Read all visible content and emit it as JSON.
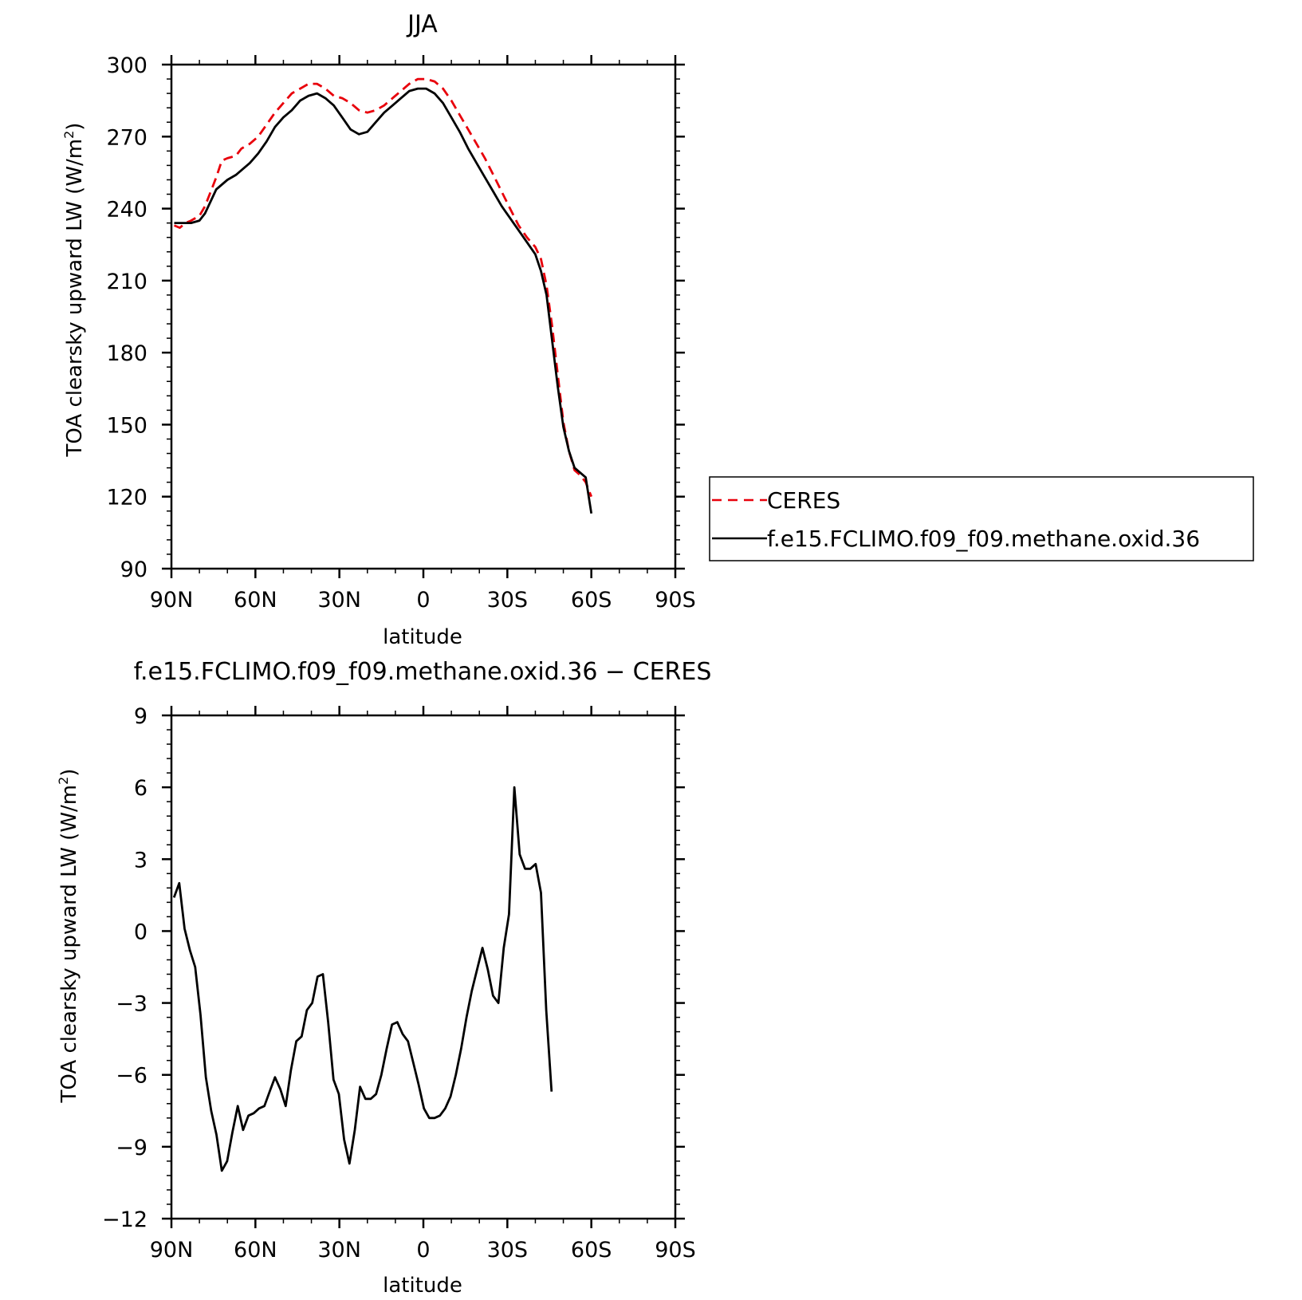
{
  "chart_data": [
    {
      "type": "line",
      "title": "JJA",
      "xlabel": "latitude",
      "ylabel": "TOA clearsky upward LW (W/m²)",
      "ylabel_main": "TOA clearsky upward LW (W/m",
      "ylabel_sup": "2",
      "ylabel_close": ")",
      "xlim": [
        90,
        -90
      ],
      "ylim": [
        90,
        300
      ],
      "x_ticks": [
        {
          "value": 90,
          "label": "90N"
        },
        {
          "value": 60,
          "label": "60N"
        },
        {
          "value": 30,
          "label": "30N"
        },
        {
          "value": 0,
          "label": "0"
        },
        {
          "value": -30,
          "label": "30S"
        },
        {
          "value": -60,
          "label": "60S"
        },
        {
          "value": -90,
          "label": "90S"
        }
      ],
      "y_ticks": [
        90,
        120,
        150,
        180,
        210,
        240,
        270,
        300
      ],
      "legend_position": "right",
      "series": [
        {
          "name": "CERES",
          "color": "#e8000b",
          "style": "dashed",
          "points": [
            [
              89,
              233
            ],
            [
              87,
              232
            ],
            [
              85,
              234
            ],
            [
              83,
              235
            ],
            [
              80,
              237
            ],
            [
              78,
              241
            ],
            [
              76,
              247
            ],
            [
              74,
              253
            ],
            [
              72,
              260
            ],
            [
              70,
              261
            ],
            [
              67,
              262
            ],
            [
              65,
              265
            ],
            [
              62,
              267
            ],
            [
              59,
              270
            ],
            [
              56,
              275
            ],
            [
              53,
              280
            ],
            [
              50,
              284
            ],
            [
              47,
              288
            ],
            [
              44,
              290
            ],
            [
              41,
              292
            ],
            [
              38,
              292
            ],
            [
              35,
              290
            ],
            [
              32,
              287
            ],
            [
              29,
              286
            ],
            [
              26,
              284
            ],
            [
              23,
              281
            ],
            [
              20,
              280
            ],
            [
              17,
              281
            ],
            [
              14,
              283
            ],
            [
              11,
              286
            ],
            [
              8,
              289
            ],
            [
              5,
              292
            ],
            [
              2,
              294
            ],
            [
              -1,
              294
            ],
            [
              -4,
              293
            ],
            [
              -7,
              290
            ],
            [
              -10,
              285
            ],
            [
              -13,
              279
            ],
            [
              -16,
              273
            ],
            [
              -19,
              267
            ],
            [
              -22,
              261
            ],
            [
              -25,
              254
            ],
            [
              -28,
              247
            ],
            [
              -31,
              240
            ],
            [
              -34,
              233
            ],
            [
              -37,
              228
            ],
            [
              -40,
              224
            ],
            [
              -42,
              219
            ],
            [
              -44,
              208
            ],
            [
              -46,
              191
            ],
            [
              -48,
              171
            ],
            [
              -50,
              151
            ],
            [
              -52,
              139
            ],
            [
              -54,
              131
            ],
            [
              -56,
              129
            ],
            [
              -58,
              126
            ],
            [
              -60,
              120
            ]
          ]
        },
        {
          "name": "f.e15.FCLIMO.f09_f09.methane.oxid.36",
          "color": "#000000",
          "style": "solid",
          "points": [
            [
              89,
              234
            ],
            [
              86,
              234
            ],
            [
              83,
              234
            ],
            [
              80,
              235
            ],
            [
              78,
              238
            ],
            [
              76,
              243
            ],
            [
              74,
              248
            ],
            [
              72,
              250
            ],
            [
              70,
              252
            ],
            [
              67,
              254
            ],
            [
              65,
              256
            ],
            [
              62,
              259
            ],
            [
              59,
              263
            ],
            [
              56,
              268
            ],
            [
              53,
              274
            ],
            [
              50,
              278
            ],
            [
              47,
              281
            ],
            [
              44,
              285
            ],
            [
              41,
              287
            ],
            [
              38,
              288
            ],
            [
              35,
              286
            ],
            [
              32,
              283
            ],
            [
              29,
              278
            ],
            [
              26,
              273
            ],
            [
              23,
              271
            ],
            [
              20,
              272
            ],
            [
              17,
              276
            ],
            [
              14,
              280
            ],
            [
              11,
              283
            ],
            [
              8,
              286
            ],
            [
              5,
              289
            ],
            [
              2,
              290
            ],
            [
              -1,
              290
            ],
            [
              -4,
              288
            ],
            [
              -7,
              284
            ],
            [
              -10,
              278
            ],
            [
              -13,
              272
            ],
            [
              -16,
              265
            ],
            [
              -19,
              259
            ],
            [
              -22,
              253
            ],
            [
              -25,
              247
            ],
            [
              -28,
              241
            ],
            [
              -31,
              236
            ],
            [
              -34,
              231
            ],
            [
              -37,
              226
            ],
            [
              -40,
              221
            ],
            [
              -42,
              214
            ],
            [
              -44,
              204
            ],
            [
              -46,
              185
            ],
            [
              -48,
              166
            ],
            [
              -50,
              149
            ],
            [
              -52,
              139
            ],
            [
              -54,
              132
            ],
            [
              -56,
              130
            ],
            [
              -58,
              128
            ],
            [
              -60,
              113
            ]
          ]
        }
      ]
    },
    {
      "type": "line",
      "title": "f.e15.FCLIMO.f09_f09.methane.oxid.36 − CERES",
      "xlabel": "latitude",
      "ylabel": "TOA clearsky upward LW (W/m²)",
      "ylabel_main": "TOA clearsky upward LW (W/m",
      "ylabel_sup": "2",
      "ylabel_close": ")",
      "xlim": [
        90,
        -90
      ],
      "ylim": [
        -12,
        9
      ],
      "x_ticks": [
        {
          "value": 90,
          "label": "90N"
        },
        {
          "value": 60,
          "label": "60N"
        },
        {
          "value": 30,
          "label": "30N"
        },
        {
          "value": 0,
          "label": "0"
        },
        {
          "value": -30,
          "label": "30S"
        },
        {
          "value": -60,
          "label": "60S"
        },
        {
          "value": -90,
          "label": "90S"
        }
      ],
      "y_ticks": [
        {
          "value": -12,
          "label": "−12"
        },
        {
          "value": -9,
          "label": "−9"
        },
        {
          "value": -6,
          "label": "−6"
        },
        {
          "value": -3,
          "label": "−3"
        },
        {
          "value": 0,
          "label": "0"
        },
        {
          "value": 3,
          "label": "3"
        },
        {
          "value": 6,
          "label": "6"
        },
        {
          "value": 9,
          "label": "9"
        }
      ],
      "series": [
        {
          "color": "#000000",
          "style": "solid",
          "points": [
            [
              89.1,
              1.4
            ],
            [
              87.2,
              2.0
            ],
            [
              85.3,
              0.1
            ],
            [
              83.4,
              -0.8
            ],
            [
              81.5,
              -1.5
            ],
            [
              79.6,
              -3.5
            ],
            [
              77.7,
              -6.1
            ],
            [
              75.8,
              -7.5
            ],
            [
              73.9,
              -8.5
            ],
            [
              72.0,
              -10.0
            ],
            [
              70.1,
              -9.6
            ],
            [
              68.2,
              -8.4
            ],
            [
              66.3,
              -7.3
            ],
            [
              64.4,
              -8.3
            ],
            [
              62.5,
              -7.7
            ],
            [
              60.6,
              -7.6
            ],
            [
              58.7,
              -7.4
            ],
            [
              56.8,
              -7.3
            ],
            [
              54.9,
              -6.7
            ],
            [
              53.0,
              -6.1
            ],
            [
              51.1,
              -6.6
            ],
            [
              49.2,
              -7.3
            ],
            [
              47.3,
              -5.8
            ],
            [
              45.4,
              -4.6
            ],
            [
              43.5,
              -4.4
            ],
            [
              41.6,
              -3.3
            ],
            [
              39.7,
              -3.0
            ],
            [
              37.8,
              -1.9
            ],
            [
              35.9,
              -1.8
            ],
            [
              34.0,
              -3.8
            ],
            [
              32.1,
              -6.2
            ],
            [
              30.2,
              -6.8
            ],
            [
              28.3,
              -8.7
            ],
            [
              26.4,
              -9.7
            ],
            [
              24.5,
              -8.3
            ],
            [
              22.6,
              -6.5
            ],
            [
              20.7,
              -7.0
            ],
            [
              18.8,
              -7.0
            ],
            [
              16.9,
              -6.8
            ],
            [
              15.0,
              -6.0
            ],
            [
              13.1,
              -4.9
            ],
            [
              11.2,
              -3.9
            ],
            [
              9.3,
              -3.8
            ],
            [
              7.4,
              -4.3
            ],
            [
              5.5,
              -4.6
            ],
            [
              3.6,
              -5.5
            ],
            [
              1.7,
              -6.4
            ],
            [
              -0.2,
              -7.4
            ],
            [
              -2.1,
              -7.8
            ],
            [
              -4.0,
              -7.8
            ],
            [
              -5.9,
              -7.7
            ],
            [
              -7.8,
              -7.4
            ],
            [
              -9.7,
              -6.9
            ],
            [
              -11.6,
              -6.0
            ],
            [
              -13.5,
              -4.9
            ],
            [
              -15.4,
              -3.6
            ],
            [
              -17.3,
              -2.5
            ],
            [
              -19.2,
              -1.6
            ],
            [
              -21.1,
              -0.7
            ],
            [
              -23.0,
              -1.6
            ],
            [
              -24.9,
              -2.7
            ],
            [
              -26.8,
              -3.0
            ],
            [
              -28.7,
              -0.7
            ],
            [
              -30.6,
              0.7
            ],
            [
              -32.5,
              6.0
            ],
            [
              -34.4,
              3.2
            ],
            [
              -36.3,
              2.6
            ],
            [
              -38.2,
              2.6
            ],
            [
              -40.1,
              2.8
            ],
            [
              -42.0,
              1.6
            ],
            [
              -43.9,
              -3.3
            ],
            [
              -45.8,
              -6.7
            ]
          ]
        }
      ]
    }
  ]
}
